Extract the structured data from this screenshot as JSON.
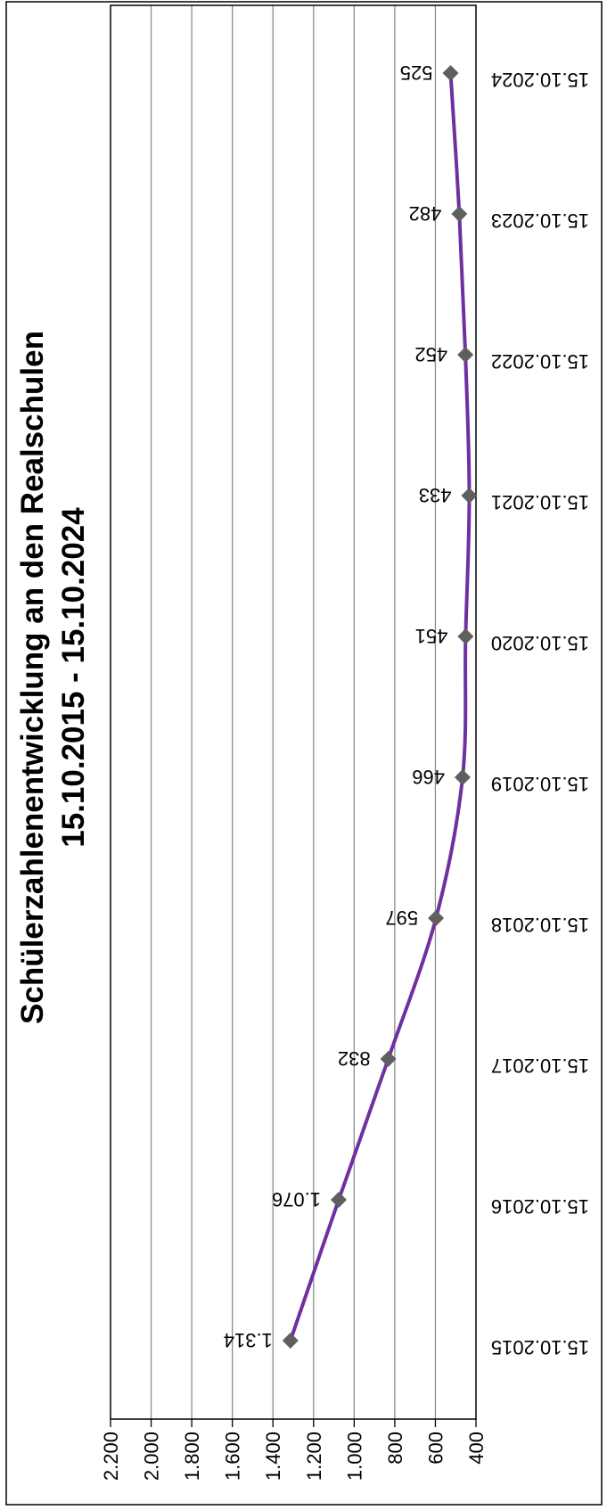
{
  "chart_data": {
    "type": "line",
    "title": "Schülerzahlenentwicklung an den Realschulen",
    "subtitle": "15.10.2015 - 15.10.2024",
    "categories": [
      "15.10.2015",
      "15.10.2016",
      "15.10.2017",
      "15.10.2018",
      "15.10.2019",
      "15.10.2020",
      "15.10.2021",
      "15.10.2022",
      "15.10.2023",
      "15.10.2024"
    ],
    "values": [
      1314,
      1076,
      832,
      597,
      466,
      451,
      433,
      452,
      482,
      525
    ],
    "value_labels": [
      "1.314",
      "1.076",
      "832",
      "597",
      "466",
      "451",
      "433",
      "452",
      "482",
      "525"
    ],
    "ylim": [
      400,
      2200
    ],
    "yticks": [
      "400",
      "600",
      "800",
      "1.000",
      "1.200",
      "1.400",
      "1.600",
      "1.800",
      "2.000",
      "2.200"
    ],
    "grid": true,
    "orientation": "rotated 90° clockwise",
    "line_color": "#7030A0",
    "marker_color": "#5f5f5f",
    "marker": "diamond"
  }
}
